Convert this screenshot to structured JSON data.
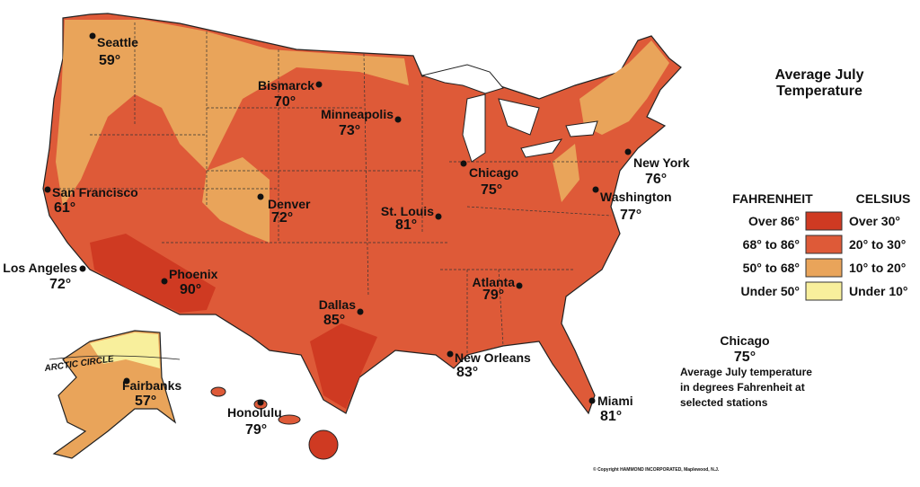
{
  "title": [
    "Average July",
    "Temperature"
  ],
  "legend": {
    "headers": [
      "FAHRENHEIT",
      "CELSIUS"
    ],
    "rows": [
      {
        "fahrenheit": "Over 86°",
        "celsius": "Over 30°",
        "color": "#cf3a22"
      },
      {
        "fahrenheit": "68° to 86°",
        "celsius": "20° to 30°",
        "color": "#de5a38"
      },
      {
        "fahrenheit": "50° to 68°",
        "celsius": "10° to 20°",
        "color": "#e9a45a"
      },
      {
        "fahrenheit": "Under 50°",
        "celsius": "Under 10°",
        "color": "#f8ef9c"
      }
    ]
  },
  "cities": [
    {
      "name": "Seattle",
      "temp": "59°"
    },
    {
      "name": "Bismarck",
      "temp": "70°"
    },
    {
      "name": "Minneapolis",
      "temp": "73°"
    },
    {
      "name": "Chicago",
      "temp": "75°"
    },
    {
      "name": "New York",
      "temp": "76°"
    },
    {
      "name": "Washington",
      "temp": "77°"
    },
    {
      "name": "San Francisco",
      "temp": "61°"
    },
    {
      "name": "Denver",
      "temp": "72°"
    },
    {
      "name": "St. Louis",
      "temp": "81°"
    },
    {
      "name": "Los Angeles",
      "temp": "72°"
    },
    {
      "name": "Phoenix",
      "temp": "90°"
    },
    {
      "name": "Atlanta",
      "temp": "79°"
    },
    {
      "name": "Dallas",
      "temp": "85°"
    },
    {
      "name": "New Orleans",
      "temp": "83°"
    },
    {
      "name": "Fairbanks",
      "temp": "57°"
    },
    {
      "name": "Honolulu",
      "temp": "79°"
    },
    {
      "name": "Miami",
      "temp": "81°"
    }
  ],
  "key_example": {
    "city": "Chicago",
    "temp": "75°",
    "lines": [
      "Average July temperature",
      "in degrees Fahrenheit at",
      "selected stations"
    ]
  },
  "arctic_circle": "ARCTIC CIRCLE",
  "copyright": "© Copyright HAMMOND INCORPORATED, Maplewood, N.J."
}
